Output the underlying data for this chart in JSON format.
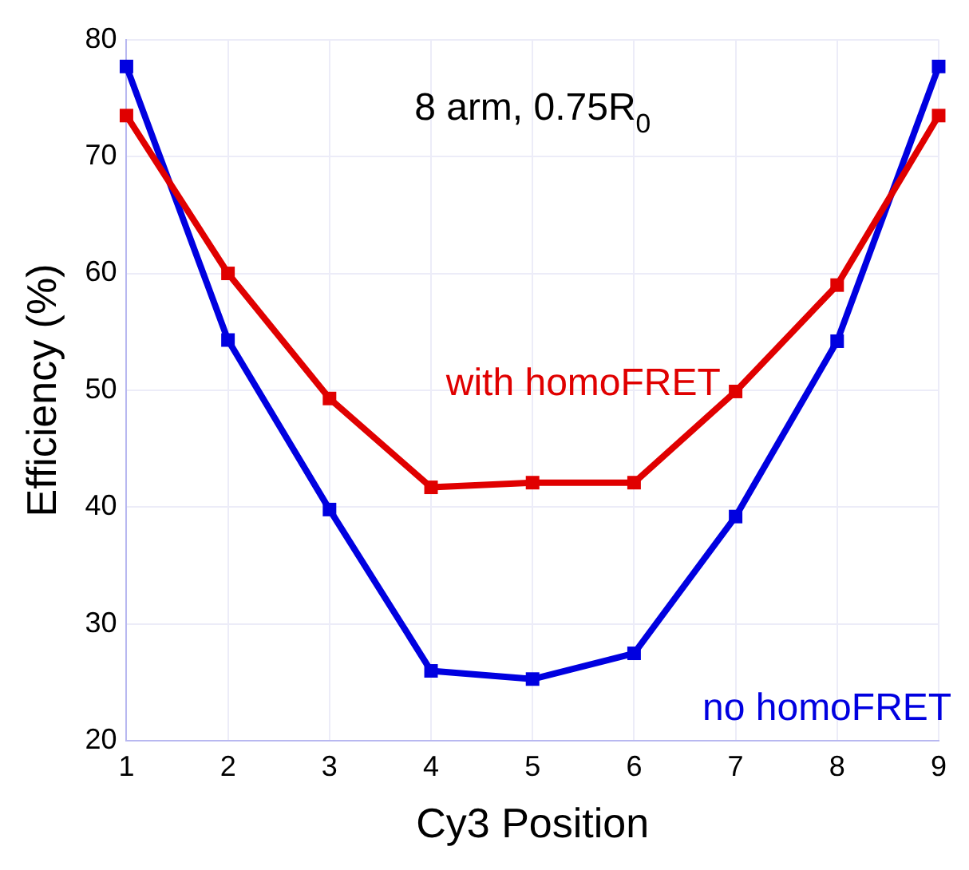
{
  "chart_data": {
    "type": "line",
    "title": "8 arm, 0.75R$_{0}$",
    "xlabel": "Cy3 Position",
    "ylabel": "Efficiency (%)",
    "x": [
      1,
      2,
      3,
      4,
      5,
      6,
      7,
      8,
      9
    ],
    "series": [
      {
        "name": "with homoFRET",
        "color": "#e00000",
        "values": [
          73.5,
          60.0,
          49.3,
          41.7,
          42.1,
          42.1,
          49.9,
          59.0,
          73.5
        ]
      },
      {
        "name": "no homoFRET",
        "color": "#0000e0",
        "values": [
          77.7,
          54.3,
          39.8,
          26.0,
          25.3,
          27.5,
          39.2,
          54.2,
          77.7
        ]
      }
    ],
    "xlim": [
      1,
      9
    ],
    "xticks": [
      1,
      2,
      3,
      4,
      5,
      6,
      7,
      8,
      9
    ],
    "ylim": [
      20,
      80
    ],
    "yticks": [
      20,
      30,
      40,
      50,
      60,
      70,
      80
    ],
    "grid": true,
    "legend": false,
    "marker": "square",
    "line_style": "solid"
  }
}
